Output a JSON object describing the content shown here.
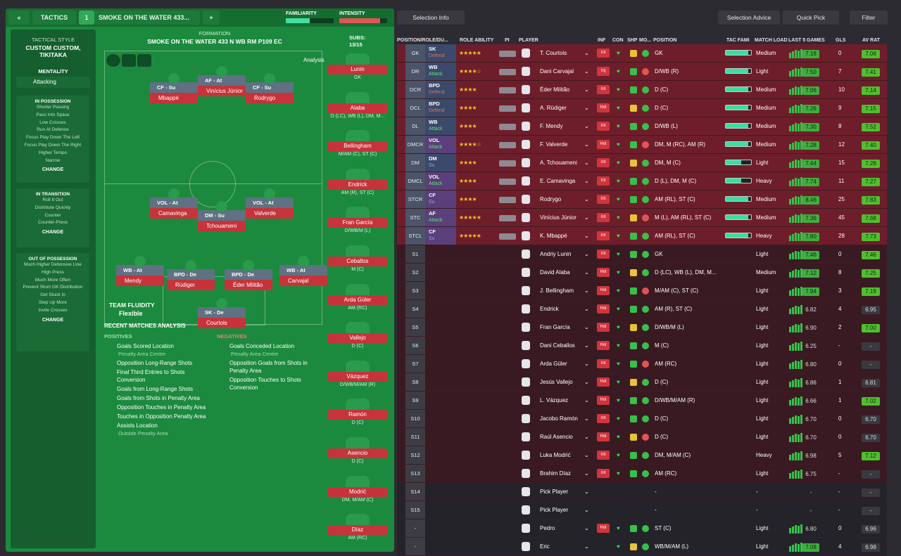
{
  "top": {
    "tactics_label": "TACTICS",
    "tactic_num": "1",
    "tactic_name": "SMOKE ON THE WATER 433...",
    "familiarity_label": "FAMILIARITY",
    "intensity_label": "INTENSITY"
  },
  "sidebar": {
    "style_label": "TACTICAL STYLE",
    "style_value": "CUSTOM CUSTOM, TIKITAKA",
    "mentality_label": "MENTALITY",
    "mentality_value": "Attacking",
    "in_possession": {
      "title": "IN POSSESSION",
      "items": [
        "Shorter Passing",
        "Pass Into Space",
        "Low Crosses",
        "Run At Defence",
        "Focus Play Down The Left",
        "Focus Play Down The Right",
        "Higher Tempo",
        "Narrow"
      ],
      "change": "CHANGE"
    },
    "in_transition": {
      "title": "IN TRANSITION",
      "items": [
        "Roll It Out",
        "Distribute Quickly",
        "Counter",
        "Counter-Press"
      ],
      "change": "CHANGE"
    },
    "out_of_possession": {
      "title": "OUT OF POSSESSION",
      "items": [
        "Much Higher Defensive Line",
        "High Press",
        "Much More Often",
        "Prevent Short GK Distribution",
        "Get Stuck In",
        "Step Up More",
        "Invite Crosses"
      ],
      "change": "CHANGE"
    }
  },
  "formation": {
    "label": "FORMATION",
    "name": "SMOKE ON THE WATER 433 N WB RM P109 EC",
    "analysis": "Analysis",
    "fluidity_label": "TEAM FLUIDITY",
    "fluidity_value": "Flexible"
  },
  "pitch": [
    {
      "role": "CF - Su",
      "name": "Mbappé"
    },
    {
      "role": "AF - At",
      "name": "Vinícius Júnior"
    },
    {
      "role": "CF - Su",
      "name": "Rodrygo"
    },
    {
      "role": "VOL - At",
      "name": "Camavinga"
    },
    {
      "role": "DM - Su",
      "name": "Tchouameni"
    },
    {
      "role": "VOL - At",
      "name": "Valverde"
    },
    {
      "role": "WB - At",
      "name": "Mendy"
    },
    {
      "role": "BPD - De",
      "name": "Rüdiger"
    },
    {
      "role": "BPD - De",
      "name": "Éder Militão"
    },
    {
      "role": "WB - At",
      "name": "Carvajal"
    },
    {
      "role": "SK - De",
      "name": "Courtois"
    }
  ],
  "subs": {
    "label": "SUBS:",
    "count": "13/15",
    "list": [
      {
        "name": "Lunin",
        "pos": "GK"
      },
      {
        "name": "Alaba",
        "pos": "D (LC), WB (L), DM, M..."
      },
      {
        "name": "Bellingham",
        "pos": "M/AM (C), ST (C)"
      },
      {
        "name": "Endrick",
        "pos": "AM (R), ST (C)"
      },
      {
        "name": "Fran García",
        "pos": "D/WB/M (L)"
      },
      {
        "name": "Ceballos",
        "pos": "M (C)"
      },
      {
        "name": "Arda Güler",
        "pos": "AM (RC)"
      },
      {
        "name": "Vallejo",
        "pos": "D (C)"
      },
      {
        "name": "Vázquez",
        "pos": "D/WB/M/AM (R)"
      },
      {
        "name": "Ramón",
        "pos": "D (C)"
      },
      {
        "name": "Asencio",
        "pos": "D (C)"
      },
      {
        "name": "Modrić",
        "pos": "DM, M/AM (C)"
      },
      {
        "name": "Díaz",
        "pos": "AM (RC)"
      }
    ]
  },
  "analysis": {
    "title": "RECENT MATCHES ANALYSIS",
    "pos_label": "POSITIVES",
    "neg_label": "NEGATIVES",
    "positives": [
      {
        "t": "Goals Scored Location",
        "s": "Penalty Area Centre"
      },
      {
        "t": "Opposition Long-Range Shots"
      },
      {
        "t": "Final Third Entries to Shots Conversion"
      },
      {
        "t": "Goals from Long-Range Shots"
      },
      {
        "t": "Goals from Shots in Penalty Area"
      },
      {
        "t": "Opposition Touches in Penalty Area"
      },
      {
        "t": "Touches in Opposition Penalty Area"
      },
      {
        "t": "Assists Location",
        "s": "Outside Penalty Area"
      }
    ],
    "negatives": [
      {
        "t": "Goals Conceded Location",
        "s": "Penalty Area Centre"
      },
      {
        "t": "Opposition Goals from Shots in Penalty Area"
      },
      {
        "t": "Opposition Touches to Shots Conversion"
      }
    ]
  },
  "right_top": {
    "selection_info": "Selection Info",
    "selection_advice": "Selection Advice",
    "quick_pick": "Quick Pick",
    "filter": "Filter"
  },
  "headers": {
    "pos": "POSITION/ROLE/DU...",
    "ability": "ROLE ABILITY",
    "pi": "PI",
    "player": "PLAYER",
    "inf": "INF",
    "con": "CON",
    "shp": "SHP",
    "mo": "MO...",
    "position": "POSITION",
    "tac": "TAC FAMI",
    "load": "MATCH LOAD",
    "last5": "LAST 5 GAMES",
    "gls": "GLS",
    "av": "AV RAT"
  },
  "rows": [
    {
      "p": "GK",
      "r": "SK",
      "d": "Defend",
      "st": "★★★★★",
      "n": "T. Courtois",
      "i": "Int",
      "pos": "GK",
      "load": "Medium",
      "l5": "7.18",
      "g": "0",
      "av": "7.08"
    },
    {
      "p": "DR",
      "r": "WB",
      "d": "Attack",
      "st": "★★★★☆",
      "n": "Dani Carvajal",
      "i": "Inj",
      "pos": "D/WB (R)",
      "load": "Light",
      "l5": "7.50",
      "g": "7",
      "av": "7.41"
    },
    {
      "p": "DCR",
      "r": "BPD",
      "d": "Defend",
      "st": "★★★★",
      "n": "Éder Militão",
      "i": "Int",
      "pos": "D (C)",
      "load": "Medium",
      "l5": "7.06",
      "g": "10",
      "av": "7.14"
    },
    {
      "p": "DCL",
      "r": "BPD",
      "d": "Defend",
      "st": "★★★★",
      "n": "A. Rüdiger",
      "i": "Hol",
      "pos": "D (C)",
      "load": "Medium",
      "l5": "7.26",
      "g": "9",
      "av": "7.15"
    },
    {
      "p": "DL",
      "r": "WB",
      "d": "Attack",
      "st": "★★★★",
      "n": "F. Mendy",
      "i": "Int",
      "pos": "D/WB (L)",
      "load": "Medium",
      "l5": "7.30",
      "g": "8",
      "av": "7.52"
    },
    {
      "p": "DMCR",
      "r": "VOL",
      "d": "Attack",
      "st": "★★★★☆",
      "n": "F. Valverde",
      "i": "Hol",
      "pos": "DM, M (RC), AM (R)",
      "load": "Medium",
      "l5": "7.28",
      "g": "12",
      "av": "7.40"
    },
    {
      "p": "DM",
      "r": "DM",
      "d": "Su",
      "st": "★★★★",
      "n": "A. Tchouameni",
      "i": "Int",
      "pos": "DM, M (C)",
      "load": "Light",
      "l5": "7.44",
      "g": "15",
      "av": "7.28"
    },
    {
      "p": "DMCL",
      "r": "VOL",
      "d": "Attack",
      "st": "★★★★",
      "n": "E. Camavinga",
      "i": "Int",
      "pos": "D (L), DM, M (C)",
      "load": "Heavy",
      "l5": "7.74",
      "g": "11",
      "av": "7.27"
    },
    {
      "p": "STCR",
      "r": "CF",
      "d": "Su",
      "st": "★★★★",
      "n": "Rodrygo",
      "i": "Int",
      "pos": "AM (RL), ST (C)",
      "load": "Medium",
      "l5": "8.46",
      "g": "25",
      "av": "7.83"
    },
    {
      "p": "STC",
      "r": "AF",
      "d": "Attack",
      "st": "★★★★★",
      "n": "Vinícius Júnior",
      "i": "Int",
      "pos": "M (L), AM (RL), ST (C)",
      "load": "Medium",
      "l5": "7.36",
      "g": "45",
      "av": "7.68"
    },
    {
      "p": "STCL",
      "r": "CF",
      "d": "Su",
      "st": "★★★★★",
      "n": "K. Mbappé",
      "i": "Int",
      "pos": "AM (RL), ST (C)",
      "load": "Heavy",
      "l5": "7.80",
      "g": "28",
      "av": "7.73"
    },
    {
      "p": "S1",
      "n": "Andriy Lunin",
      "i": "Int",
      "pos": "GK",
      "load": "Light",
      "l5": "7.46",
      "g": "0",
      "av": "7.46"
    },
    {
      "p": "S2",
      "n": "David Alaba",
      "i": "Hol",
      "pos": "D (LC), WB (L), DM, M...",
      "load": "Medium",
      "l5": "7.12",
      "g": "8",
      "av": "7.25"
    },
    {
      "p": "S3",
      "n": "J. Bellingham",
      "i": "Hol",
      "pos": "M/AM (C), ST (C)",
      "load": "Light",
      "l5": "7.94",
      "g": "3",
      "av": "7.19"
    },
    {
      "p": "S4",
      "n": "Endrick",
      "i": "Hol",
      "pos": "AM (R), ST (C)",
      "load": "Light",
      "l5": "6.82",
      "g": "4",
      "av": "6.95"
    },
    {
      "p": "S5",
      "n": "Fran García",
      "i": "Hol",
      "pos": "D/WB/M (L)",
      "load": "Light",
      "l5": "6.90",
      "g": "2",
      "av": "7.00"
    },
    {
      "p": "S6",
      "n": "Dani Ceballos",
      "i": "Hol",
      "pos": "M (C)",
      "load": "Light",
      "l5": "6.25",
      "g": "-",
      "av": "-"
    },
    {
      "p": "S7",
      "n": "Arda Güler",
      "i": "Int",
      "pos": "AM (RC)",
      "load": "Light",
      "l5": "6.80",
      "g": "0",
      "av": "-"
    },
    {
      "p": "S8",
      "n": "Jesús Vallejo",
      "i": "Hol",
      "pos": "D (C)",
      "load": "Light",
      "l5": "6.86",
      "g": "1",
      "av": "6.81"
    },
    {
      "p": "S9",
      "n": "L. Vázquez",
      "i": "Hol",
      "pos": "D/WB/M/AM (R)",
      "load": "Light",
      "l5": "6.66",
      "g": "1",
      "av": "7.02"
    },
    {
      "p": "S10",
      "n": "Jacobo Ramón",
      "i": "Int",
      "pos": "D (C)",
      "load": "Light",
      "l5": "6.70",
      "g": "0",
      "av": "6.70"
    },
    {
      "p": "S11",
      "n": "Raúl Asencio",
      "i": "Hol",
      "pos": "D (C)",
      "load": "Light",
      "l5": "6.70",
      "g": "0",
      "av": "6.70"
    },
    {
      "p": "S12",
      "n": "Luka Modrić",
      "i": "Int",
      "pos": "DM, M/AM (C)",
      "load": "Heavy",
      "l5": "6.98",
      "g": "5",
      "av": "7.12"
    },
    {
      "p": "S13",
      "n": "Brahim Díaz",
      "i": "Int",
      "pos": "AM (RC)",
      "load": "Light",
      "l5": "6.75",
      "g": "-",
      "av": "-"
    },
    {
      "p": "S14",
      "n": "Pick Player",
      "pos": "-",
      "load": "-",
      "l5": "-",
      "g": "-",
      "av": "-"
    },
    {
      "p": "S15",
      "n": "Pick Player",
      "pos": "-",
      "load": "-",
      "l5": "-",
      "g": "-",
      "av": "-"
    },
    {
      "p": "-",
      "n": "Pedro",
      "i": "Hol",
      "pos": "ST (C)",
      "load": "Light",
      "l5": "6.80",
      "g": "0",
      "av": "6.96"
    },
    {
      "p": "-",
      "n": "Eric",
      "pos": "WB/M/AM (L)",
      "load": "Light",
      "l5": "7.08",
      "g": "4",
      "av": "6.98"
    }
  ]
}
